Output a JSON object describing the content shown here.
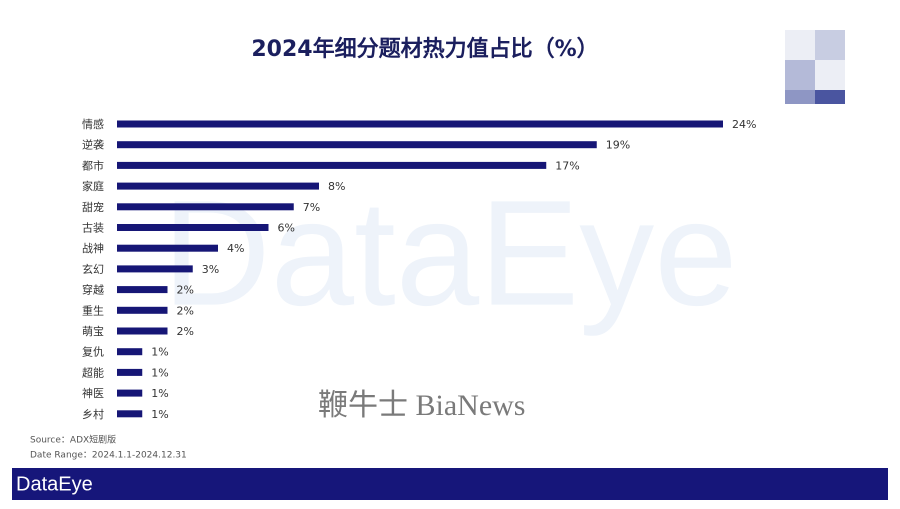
{
  "chart_data": {
    "type": "bar",
    "orientation": "horizontal",
    "title": "2024年细分题材热力值占比（%）",
    "categories": [
      "情感",
      "逆袭",
      "都市",
      "家庭",
      "甜宠",
      "古装",
      "战神",
      "玄幻",
      "穿越",
      "重生",
      "萌宝",
      "复仇",
      "超能",
      "神医",
      "乡村"
    ],
    "values": [
      24,
      19,
      17,
      8,
      7,
      6,
      4,
      3,
      2,
      2,
      2,
      1,
      1,
      1,
      1
    ],
    "value_labels": [
      "24%",
      "19%",
      "17%",
      "8%",
      "7%",
      "6%",
      "4%",
      "3%",
      "2%",
      "2%",
      "2%",
      "1%",
      "1%",
      "1%",
      "1%"
    ],
    "color": "#161676",
    "source": "Source：ADX短剧版",
    "date_range": "Date Range：2024.1.1-2024.12.31",
    "brand": "DataEye",
    "watermark": "鞭牛士 BiaNews"
  }
}
